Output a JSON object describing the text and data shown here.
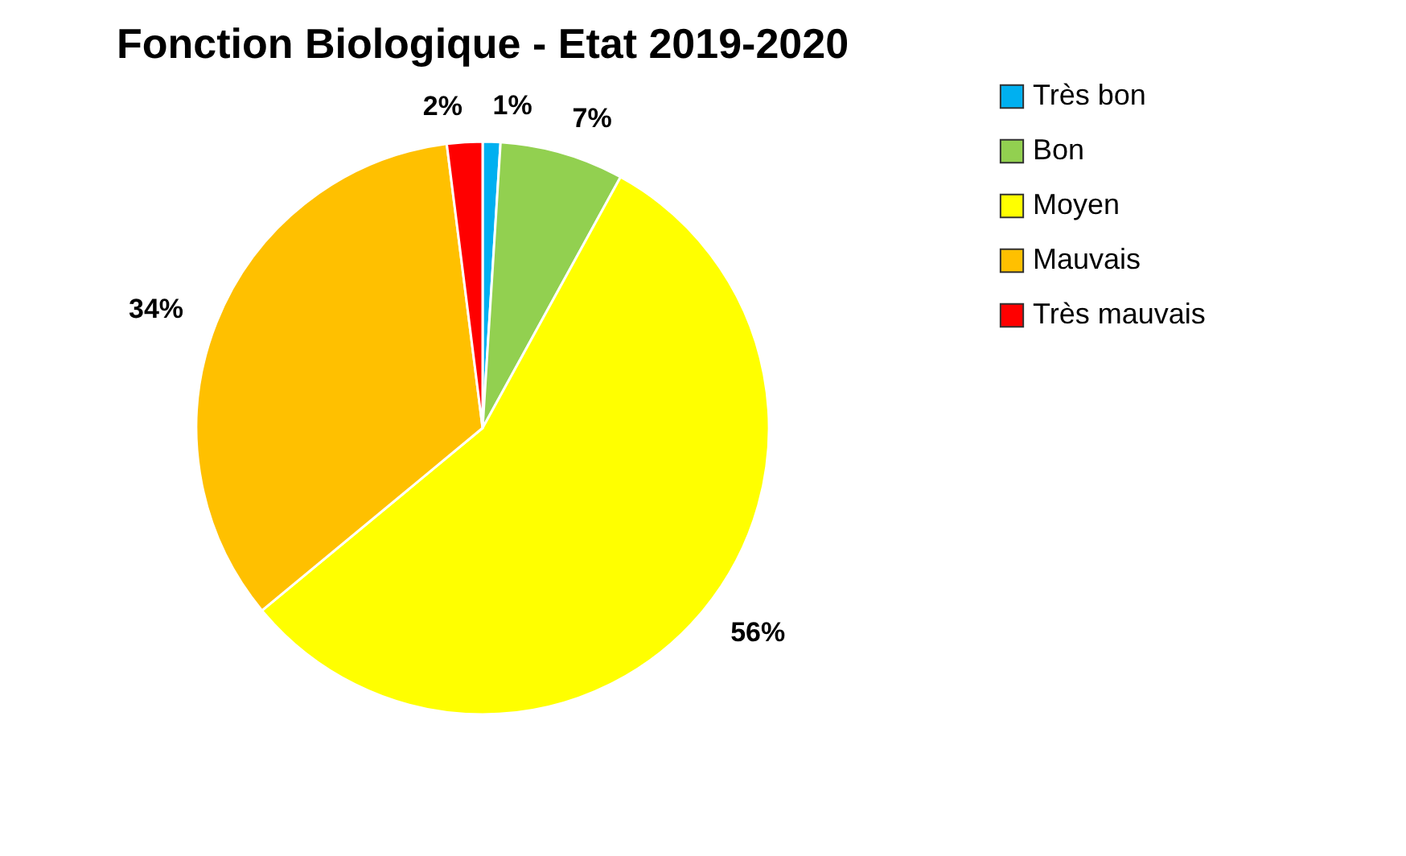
{
  "chart_data": {
    "type": "pie",
    "title": "Fonction Biologique - Etat 2019-2020",
    "categories": [
      "Très bon",
      "Bon",
      "Moyen",
      "Mauvais",
      "Très mauvais"
    ],
    "values": [
      1,
      7,
      56,
      34,
      2
    ],
    "colors": [
      "#00b0f0",
      "#92d050",
      "#ffff00",
      "#ffc000",
      "#ff0000"
    ],
    "value_labels": [
      "1%",
      "7%",
      "56%",
      "34%",
      "2%"
    ],
    "legend": "right"
  }
}
